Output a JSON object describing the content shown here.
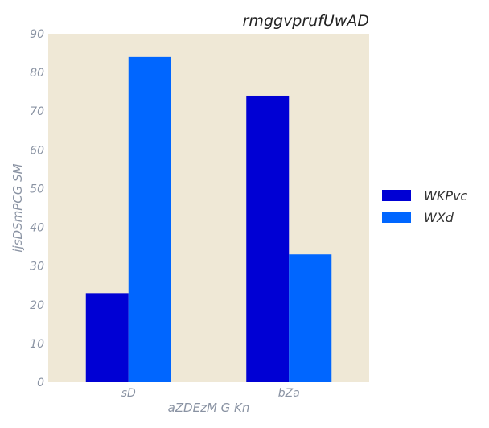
{
  "chart_data": {
    "type": "bar",
    "title": "rmggvprufUwAD",
    "xlabel": "aZDEzM G Kn",
    "ylabel": "ijsDSmPCG SM",
    "categories": [
      "sD",
      "bZa"
    ],
    "series": [
      {
        "name": "WKPvc",
        "values": [
          23,
          74
        ],
        "color": "#0000d4"
      },
      {
        "name": "WXd",
        "values": [
          84,
          33
        ],
        "color": "#0066ff"
      }
    ],
    "ylim": [
      0,
      90
    ],
    "yticks": [
      0,
      10,
      20,
      30,
      40,
      50,
      60,
      70,
      80,
      90
    ],
    "grid": false,
    "legend_position": "right",
    "plot_background": "#efe8d6"
  }
}
